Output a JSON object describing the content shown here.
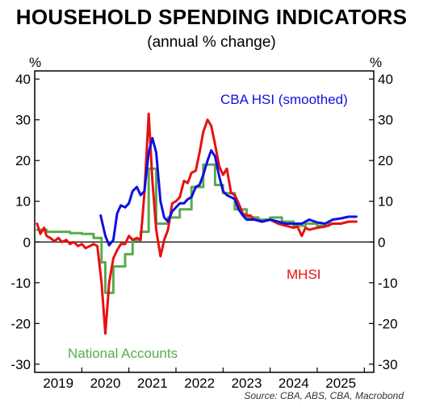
{
  "chart_data": {
    "type": "line",
    "title": "HOUSEHOLD SPENDING INDICATORS",
    "subtitle": "(annual % change)",
    "unit_left": "%",
    "unit_right": "%",
    "ylim": [
      -32,
      42
    ],
    "yticks": [
      40,
      30,
      20,
      10,
      0,
      -10,
      -20,
      -30
    ],
    "xlim": [
      2018.5,
      2025.7
    ],
    "xticks": [
      {
        "label": "2019",
        "value": 2019
      },
      {
        "label": "2020",
        "value": 2020
      },
      {
        "label": "2021",
        "value": 2021
      },
      {
        "label": "2022",
        "value": 2022
      },
      {
        "label": "2023",
        "value": 2023
      },
      {
        "label": "2024",
        "value": 2024
      },
      {
        "label": "2025",
        "value": 2025
      }
    ],
    "source": "Source: CBA, ABS, CBA, Macrobond",
    "series": [
      {
        "name": "CBA HSI (smoothed)",
        "color": "#1010e0",
        "points": [
          [
            2019.9,
            6.5
          ],
          [
            2020.0,
            1.5
          ],
          [
            2020.08,
            -0.8
          ],
          [
            2020.17,
            0.5
          ],
          [
            2020.25,
            7.0
          ],
          [
            2020.33,
            9.0
          ],
          [
            2020.42,
            8.5
          ],
          [
            2020.5,
            9.5
          ],
          [
            2020.58,
            12.5
          ],
          [
            2020.67,
            13.5
          ],
          [
            2020.75,
            11.5
          ],
          [
            2020.83,
            12.5
          ],
          [
            2020.92,
            22.0
          ],
          [
            2021.0,
            25.5
          ],
          [
            2021.08,
            22.0
          ],
          [
            2021.17,
            10.0
          ],
          [
            2021.25,
            6.0
          ],
          [
            2021.33,
            5.0
          ],
          [
            2021.42,
            7.5
          ],
          [
            2021.5,
            8.5
          ],
          [
            2021.58,
            9.5
          ],
          [
            2021.67,
            9.5
          ],
          [
            2021.75,
            10.5
          ],
          [
            2021.83,
            11.0
          ],
          [
            2021.92,
            13.5
          ],
          [
            2022.0,
            14.0
          ],
          [
            2022.08,
            16.5
          ],
          [
            2022.17,
            20.0
          ],
          [
            2022.25,
            22.5
          ],
          [
            2022.33,
            21.0
          ],
          [
            2022.42,
            16.0
          ],
          [
            2022.5,
            12.5
          ],
          [
            2022.58,
            11.5
          ],
          [
            2022.67,
            11.0
          ],
          [
            2022.75,
            10.5
          ],
          [
            2022.83,
            8.0
          ],
          [
            2022.92,
            6.5
          ],
          [
            2023.0,
            5.5
          ],
          [
            2023.17,
            5.5
          ],
          [
            2023.33,
            5.0
          ],
          [
            2023.5,
            5.5
          ],
          [
            2023.67,
            5.0
          ],
          [
            2023.83,
            4.5
          ],
          [
            2024.0,
            4.5
          ],
          [
            2024.17,
            4.5
          ],
          [
            2024.33,
            5.5
          ],
          [
            2024.5,
            4.8
          ],
          [
            2024.67,
            4.5
          ],
          [
            2024.83,
            5.5
          ],
          [
            2025.0,
            5.8
          ],
          [
            2025.17,
            6.2
          ],
          [
            2025.33,
            6.2
          ]
        ]
      },
      {
        "name": "MHSI",
        "color": "#e81010",
        "points": [
          [
            2018.55,
            4.5
          ],
          [
            2018.62,
            2.0
          ],
          [
            2018.7,
            3.5
          ],
          [
            2018.75,
            1.5
          ],
          [
            2018.83,
            1.0
          ],
          [
            2018.92,
            0.2
          ],
          [
            2019.0,
            1.0
          ],
          [
            2019.08,
            0.0
          ],
          [
            2019.17,
            0.5
          ],
          [
            2019.25,
            -0.5
          ],
          [
            2019.33,
            0.0
          ],
          [
            2019.42,
            -1.0
          ],
          [
            2019.5,
            -0.5
          ],
          [
            2019.58,
            -1.5
          ],
          [
            2019.67,
            -1.0
          ],
          [
            2019.75,
            -0.5
          ],
          [
            2019.83,
            -1.0
          ],
          [
            2019.92,
            -10.0
          ],
          [
            2020.0,
            -22.5
          ],
          [
            2020.08,
            -10.0
          ],
          [
            2020.17,
            -4.0
          ],
          [
            2020.25,
            -2.0
          ],
          [
            2020.33,
            -0.5
          ],
          [
            2020.42,
            -0.5
          ],
          [
            2020.5,
            1.5
          ],
          [
            2020.58,
            0.5
          ],
          [
            2020.67,
            1.0
          ],
          [
            2020.75,
            0.5
          ],
          [
            2020.83,
            12.0
          ],
          [
            2020.92,
            31.5
          ],
          [
            2021.0,
            15.0
          ],
          [
            2021.08,
            3.0
          ],
          [
            2021.17,
            -3.5
          ],
          [
            2021.25,
            0.5
          ],
          [
            2021.33,
            3.0
          ],
          [
            2021.42,
            9.5
          ],
          [
            2021.5,
            10.0
          ],
          [
            2021.58,
            11.0
          ],
          [
            2021.67,
            15.0
          ],
          [
            2021.75,
            14.5
          ],
          [
            2021.83,
            17.0
          ],
          [
            2021.92,
            17.5
          ],
          [
            2022.0,
            22.0
          ],
          [
            2022.08,
            27.0
          ],
          [
            2022.17,
            30.0
          ],
          [
            2022.25,
            28.5
          ],
          [
            2022.33,
            24.0
          ],
          [
            2022.42,
            18.5
          ],
          [
            2022.5,
            16.5
          ],
          [
            2022.58,
            18.0
          ],
          [
            2022.67,
            12.0
          ],
          [
            2022.75,
            11.5
          ],
          [
            2022.83,
            9.5
          ],
          [
            2022.92,
            7.0
          ],
          [
            2023.0,
            6.5
          ],
          [
            2023.08,
            6.5
          ],
          [
            2023.17,
            5.5
          ],
          [
            2023.33,
            5.0
          ],
          [
            2023.5,
            5.5
          ],
          [
            2023.67,
            4.5
          ],
          [
            2023.83,
            4.0
          ],
          [
            2024.0,
            3.5
          ],
          [
            2024.08,
            3.8
          ],
          [
            2024.17,
            1.5
          ],
          [
            2024.25,
            3.5
          ],
          [
            2024.33,
            3.0
          ],
          [
            2024.5,
            3.5
          ],
          [
            2024.67,
            3.8
          ],
          [
            2024.83,
            4.5
          ],
          [
            2025.0,
            4.5
          ],
          [
            2025.17,
            5.0
          ],
          [
            2025.33,
            5.0
          ]
        ]
      },
      {
        "name": "National Accounts",
        "color": "#5aaa50",
        "points": [
          [
            2018.55,
            3.0
          ],
          [
            2018.75,
            3.0
          ],
          [
            2018.75,
            2.5
          ],
          [
            2019.0,
            2.5
          ],
          [
            2019.0,
            2.5
          ],
          [
            2019.25,
            2.5
          ],
          [
            2019.25,
            2.2
          ],
          [
            2019.5,
            2.2
          ],
          [
            2019.5,
            2.0
          ],
          [
            2019.75,
            2.0
          ],
          [
            2019.75,
            1.0
          ],
          [
            2019.92,
            1.0
          ],
          [
            2019.92,
            -5.0
          ],
          [
            2020.0,
            -5.0
          ],
          [
            2020.0,
            -12.5
          ],
          [
            2020.17,
            -12.5
          ],
          [
            2020.17,
            -6.0
          ],
          [
            2020.42,
            -6.0
          ],
          [
            2020.42,
            -3.0
          ],
          [
            2020.58,
            -3.0
          ],
          [
            2020.58,
            0.5
          ],
          [
            2020.75,
            0.5
          ],
          [
            2020.75,
            2.5
          ],
          [
            2020.92,
            2.5
          ],
          [
            2020.92,
            18.0
          ],
          [
            2021.08,
            18.0
          ],
          [
            2021.08,
            4.5
          ],
          [
            2021.33,
            4.5
          ],
          [
            2021.33,
            6.0
          ],
          [
            2021.58,
            6.0
          ],
          [
            2021.58,
            8.0
          ],
          [
            2021.83,
            8.0
          ],
          [
            2021.83,
            13.5
          ],
          [
            2022.08,
            13.5
          ],
          [
            2022.08,
            19.0
          ],
          [
            2022.33,
            19.0
          ],
          [
            2022.33,
            14.0
          ],
          [
            2022.5,
            14.0
          ],
          [
            2022.5,
            12.0
          ],
          [
            2022.75,
            12.0
          ],
          [
            2022.75,
            8.0
          ],
          [
            2023.0,
            8.0
          ],
          [
            2023.0,
            6.0
          ],
          [
            2023.25,
            6.0
          ],
          [
            2023.25,
            5.5
          ],
          [
            2023.5,
            5.5
          ],
          [
            2023.5,
            6.0
          ],
          [
            2023.75,
            6.0
          ],
          [
            2023.75,
            5.0
          ],
          [
            2024.0,
            5.0
          ],
          [
            2024.0,
            4.0
          ],
          [
            2024.25,
            4.0
          ],
          [
            2024.25,
            4.5
          ],
          [
            2024.5,
            4.5
          ],
          [
            2024.5,
            4.0
          ],
          [
            2024.75,
            4.0
          ],
          [
            2024.75,
            4.5
          ],
          [
            2025.0,
            4.5
          ]
        ]
      }
    ]
  }
}
